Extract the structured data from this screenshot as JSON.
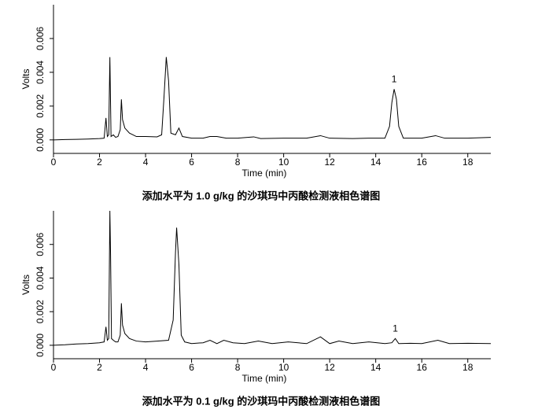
{
  "chart_data": [
    {
      "type": "line",
      "title": "添加水平为 1.0 g/kg 的沙琪玛中丙酸检测液相色谱图",
      "x_label": "Time (min)",
      "y_label": "Volts",
      "color": "#000000",
      "x": [
        0,
        0.5,
        1,
        1.5,
        2,
        2.2,
        2.28,
        2.34,
        2.4,
        2.45,
        2.5,
        2.6,
        2.7,
        2.8,
        2.9,
        2.95,
        3.0,
        3.1,
        3.3,
        3.6,
        4.0,
        4.5,
        4.7,
        4.8,
        4.9,
        5.0,
        5.1,
        5.3,
        5.45,
        5.6,
        6.0,
        6.5,
        6.8,
        7.1,
        7.5,
        8,
        8.7,
        9,
        10,
        11,
        11.6,
        12,
        13,
        13.7,
        14.4,
        14.6,
        14.7,
        14.8,
        14.9,
        15.0,
        15.2,
        16,
        16.6,
        17,
        18,
        19
      ],
      "values": [
        0,
        2e-05,
        3e-05,
        5e-05,
        8e-05,
        0.0001,
        0.0013,
        0.0002,
        0.0003,
        0.0049,
        0.0002,
        0.0003,
        0.00015,
        0.0002,
        0.0006,
        0.0024,
        0.0012,
        0.0007,
        0.0004,
        0.0002,
        0.0002,
        0.00018,
        0.0003,
        0.0025,
        0.0049,
        0.0035,
        0.0004,
        0.0003,
        0.0007,
        0.0002,
        0.0001,
        0.0001,
        0.0002,
        0.0002,
        0.0001,
        0.0001,
        0.00018,
        8e-05,
        0.0001,
        0.0001,
        0.00025,
        0.0001,
        8e-05,
        0.0001,
        0.0001,
        0.0008,
        0.0022,
        0.003,
        0.0024,
        0.0008,
        0.0001,
        0.0001,
        0.00025,
        0.0001,
        0.0001,
        0.00015
      ],
      "xlim": [
        0,
        19
      ],
      "xticks": [
        0,
        2,
        4,
        6,
        8,
        10,
        12,
        14,
        16,
        18
      ],
      "ylim": [
        -0.0008,
        0.008
      ],
      "yticks": [
        {
          "value": 0,
          "label": "0.000"
        },
        {
          "value": 0.002,
          "label": "0.002"
        },
        {
          "value": 0.004,
          "label": "0.004"
        },
        {
          "value": 0.006,
          "label": "0.006"
        }
      ],
      "annotations": [
        {
          "text": "1",
          "x": 14.8
        }
      ]
    },
    {
      "type": "line",
      "title": "添加水平为 0.1 g/kg 的沙琪玛中丙酸检测液相色谱图",
      "x_label": "Time (min)",
      "y_label": "Volts",
      "color": "#000000",
      "x": [
        0,
        0.5,
        1,
        1.5,
        2,
        2.2,
        2.28,
        2.34,
        2.4,
        2.45,
        2.48,
        2.52,
        2.6,
        2.7,
        2.8,
        2.9,
        2.95,
        3.0,
        3.1,
        3.3,
        3.6,
        4.0,
        4.5,
        5.0,
        5.2,
        5.3,
        5.35,
        5.45,
        5.55,
        5.7,
        6.0,
        6.5,
        6.8,
        7.1,
        7.4,
        7.8,
        8.3,
        8.9,
        9.5,
        10.2,
        11,
        11.6,
        12,
        12.4,
        13,
        13.7,
        14.4,
        14.7,
        14.85,
        15.0,
        15.5,
        16,
        16.7,
        17.2,
        18,
        19
      ],
      "values": [
        0,
        3e-05,
        8e-05,
        0.0001,
        0.00015,
        0.0002,
        0.0011,
        0.0003,
        0.0004,
        0.008,
        0.0054,
        0.0004,
        0.0003,
        0.0002,
        0.0002,
        0.0006,
        0.0025,
        0.0012,
        0.0007,
        0.0004,
        0.00025,
        0.0002,
        0.00025,
        0.0003,
        0.0015,
        0.0055,
        0.007,
        0.0048,
        0.0006,
        0.0002,
        0.0001,
        0.00015,
        0.0003,
        0.0001,
        0.0003,
        0.00015,
        0.0001,
        0.00025,
        0.0001,
        0.0002,
        0.0001,
        0.0005,
        0.0001,
        0.00025,
        0.0001,
        0.0002,
        0.0001,
        0.00015,
        0.0004,
        0.0001,
        0.00012,
        0.0001,
        0.0003,
        0.0001,
        0.00012,
        0.0001
      ],
      "xlim": [
        0,
        19
      ],
      "xticks": [
        0,
        2,
        4,
        6,
        8,
        10,
        12,
        14,
        16,
        18
      ],
      "ylim": [
        -0.0008,
        0.008
      ],
      "yticks": [
        {
          "value": 0,
          "label": "0.000"
        },
        {
          "value": 0.002,
          "label": "0.002"
        },
        {
          "value": 0.004,
          "label": "0.004"
        },
        {
          "value": 0.006,
          "label": "0.006"
        }
      ],
      "annotations": [
        {
          "text": "1",
          "x": 14.85
        }
      ]
    }
  ]
}
